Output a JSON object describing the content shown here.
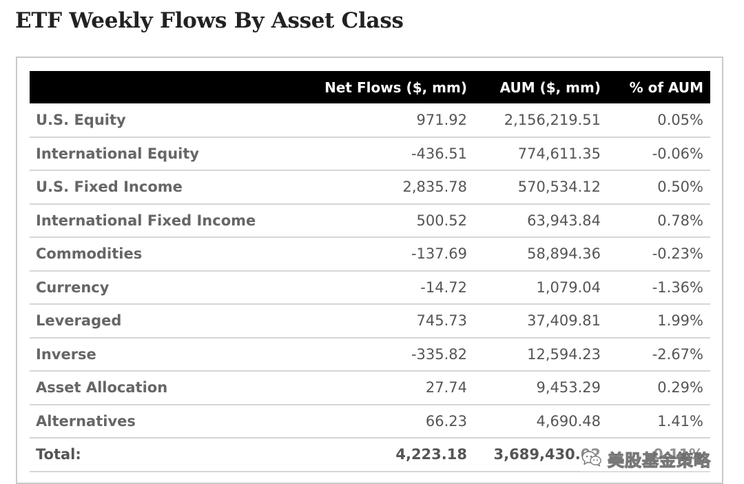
{
  "title": "ETF Weekly Flows By Asset Class",
  "table": {
    "headers": [
      "",
      "Net Flows ($, mm)",
      "AUM ($, mm)",
      "% of AUM"
    ],
    "rows": [
      [
        "U.S. Equity",
        "971.92",
        "2,156,219.51",
        "0.05%"
      ],
      [
        "International Equity",
        "-436.51",
        "774,611.35",
        "-0.06%"
      ],
      [
        "U.S. Fixed Income",
        "2,835.78",
        "570,534.12",
        "0.50%"
      ],
      [
        "International Fixed Income",
        "500.52",
        "63,943.84",
        "0.78%"
      ],
      [
        "Commodities",
        "-137.69",
        "58,894.36",
        "-0.23%"
      ],
      [
        "Currency",
        "-14.72",
        "1,079.04",
        "-1.36%"
      ],
      [
        "Leveraged",
        "745.73",
        "37,409.81",
        "1.99%"
      ],
      [
        "Inverse",
        "-335.82",
        "12,594.23",
        "-2.67%"
      ],
      [
        "Asset Allocation",
        "27.74",
        "9,453.29",
        "0.29%"
      ],
      [
        "Alternatives",
        "66.23",
        "4,690.48",
        "1.41%"
      ]
    ],
    "total": [
      "Total:",
      "4,223.18",
      "3,689,430.02",
      "0.11%"
    ]
  },
  "watermark": {
    "icon": "wechat-icon",
    "text": "美股基金策略"
  }
}
